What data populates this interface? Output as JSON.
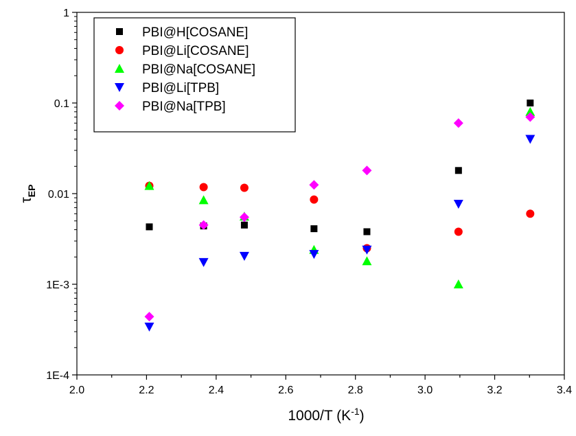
{
  "chart_data": {
    "type": "scatter",
    "xlabel": "1000/T (K",
    "xlabel_sup": "-1",
    "xlabel_suffix": ")",
    "ylabel": "τ",
    "ylabel_sub": "EP",
    "xlim": [
      2.0,
      3.4
    ],
    "ylim": [
      0.0001,
      1
    ],
    "yscale": "log",
    "x_ticks": [
      {
        "value": 2.0,
        "label": "2.0"
      },
      {
        "value": 2.2,
        "label": "2.2"
      },
      {
        "value": 2.4,
        "label": "2.4"
      },
      {
        "value": 2.6,
        "label": "2.6"
      },
      {
        "value": 2.8,
        "label": "2.8"
      },
      {
        "value": 3.0,
        "label": "3.0"
      },
      {
        "value": 3.2,
        "label": "3.2"
      },
      {
        "value": 3.4,
        "label": "3.4"
      }
    ],
    "y_ticks": [
      {
        "value": 0.0001,
        "label": "1E-4"
      },
      {
        "value": 0.001,
        "label": "1E-3"
      },
      {
        "value": 0.01,
        "label": "0.01"
      },
      {
        "value": 0.1,
        "label": "0.1"
      },
      {
        "value": 1,
        "label": "1"
      }
    ],
    "grid": false,
    "legend_position": "top-left",
    "series": [
      {
        "name": "PBI@H[COSANE]",
        "marker": "square",
        "color": "#000000",
        "points": [
          [
            2.208,
            0.0043
          ],
          [
            2.364,
            0.0044
          ],
          [
            2.481,
            0.0045
          ],
          [
            2.681,
            0.0041
          ],
          [
            2.833,
            0.0038
          ],
          [
            3.096,
            0.018
          ],
          [
            3.302,
            0.1
          ]
        ]
      },
      {
        "name": "PBI@Li[COSANE]",
        "marker": "circle",
        "color": "#ff0000",
        "points": [
          [
            2.208,
            0.0122
          ],
          [
            2.364,
            0.0118
          ],
          [
            2.481,
            0.0116
          ],
          [
            2.681,
            0.0086
          ],
          [
            2.833,
            0.0025
          ],
          [
            3.096,
            0.0038
          ],
          [
            3.302,
            0.006
          ]
        ]
      },
      {
        "name": "PBI@Na[COSANE]",
        "marker": "triangle-up",
        "color": "#00ff00",
        "points": [
          [
            2.208,
            0.0122
          ],
          [
            2.364,
            0.0085
          ],
          [
            2.481,
            0.0056
          ],
          [
            2.681,
            0.0024
          ],
          [
            2.833,
            0.0018
          ],
          [
            3.096,
            0.001
          ],
          [
            3.302,
            0.08
          ]
        ]
      },
      {
        "name": "PBI@Li[TPB]",
        "marker": "triangle-down",
        "color": "#0000ff",
        "points": [
          [
            2.208,
            0.00034
          ],
          [
            2.364,
            0.00175
          ],
          [
            2.481,
            0.00205
          ],
          [
            2.681,
            0.00215
          ],
          [
            2.833,
            0.0024
          ],
          [
            3.096,
            0.0077
          ],
          [
            3.302,
            0.04
          ]
        ]
      },
      {
        "name": "PBI@Na[TPB]",
        "marker": "diamond",
        "color": "#ff00ff",
        "points": [
          [
            2.208,
            0.00044
          ],
          [
            2.364,
            0.0045
          ],
          [
            2.481,
            0.0055
          ],
          [
            2.681,
            0.0125
          ],
          [
            2.833,
            0.018
          ],
          [
            3.096,
            0.06
          ],
          [
            3.302,
            0.07
          ]
        ]
      }
    ]
  }
}
